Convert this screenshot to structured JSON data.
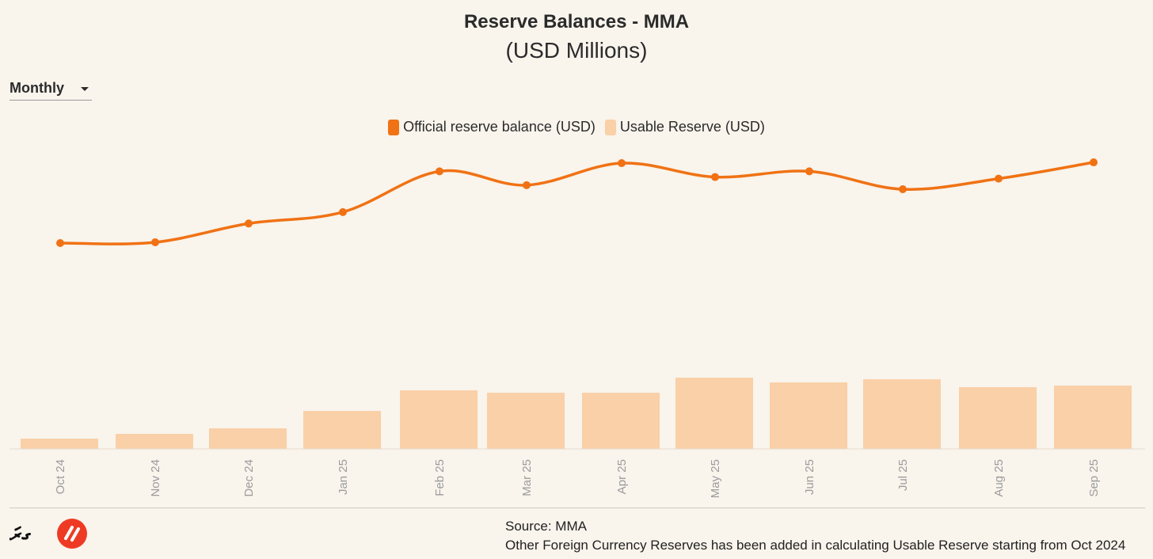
{
  "header": {
    "title": "Reserve Balances - MMA",
    "subtitle": "(USD Millions)"
  },
  "controls": {
    "period_selected": "Monthly"
  },
  "legend": {
    "items": [
      {
        "label": "Official reserve balance (USD)",
        "color": "#f07214"
      },
      {
        "label": "Usable Reserve (USD)",
        "color": "#f9d0a7"
      }
    ]
  },
  "chart_data": {
    "type": "bar",
    "title": "Reserve Balances - MMA",
    "subtitle": "(USD Millions)",
    "categories": [
      "Oct 24",
      "Nov 24",
      "Dec 24",
      "Jan 25",
      "Feb 25",
      "Mar 25",
      "Apr 25",
      "May 25",
      "Jun 25",
      "Jul 25",
      "Aug 25",
      "Sep 25"
    ],
    "series": [
      {
        "name": "Official reserve balance (USD)",
        "type": "line",
        "color": "#f07214",
        "values": [
          580,
          581,
          604,
          618,
          668,
          651,
          678,
          661,
          668,
          646,
          659,
          679
        ]
      },
      {
        "name": "Usable Reserve (USD)",
        "type": "bar",
        "color": "#f9d0a7",
        "values": [
          13,
          19,
          26,
          48,
          74,
          71,
          71,
          90,
          84,
          88,
          78,
          80
        ]
      }
    ],
    "ylim": [
      0,
      680
    ],
    "xlabel": "",
    "ylabel": "",
    "grid": false,
    "legend_position": "top-center"
  },
  "footer": {
    "source": "Source: MMA",
    "note": "Other Foreign Currency Reserves has been added in calculating Usable Reserve starting from Oct 2024",
    "logo_text": "ގރަ"
  }
}
